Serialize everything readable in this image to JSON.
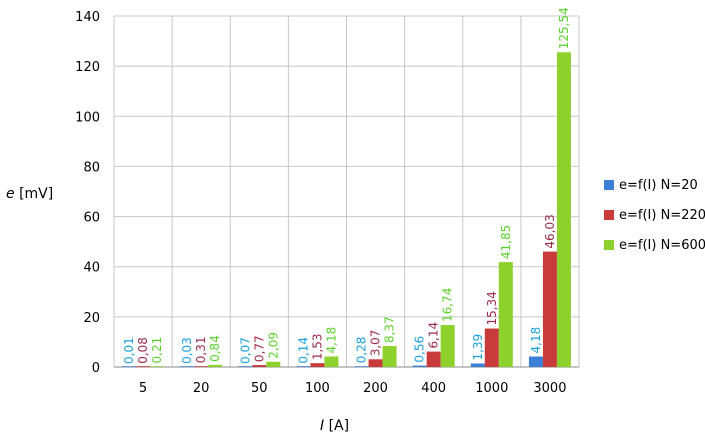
{
  "chart_data": {
    "type": "bar",
    "categories": [
      "5",
      "20",
      "50",
      "100",
      "200",
      "400",
      "1000",
      "3000"
    ],
    "series": [
      {
        "name": "e=f(I) N=20",
        "color": "#3c7fd6",
        "values": [
          0.01,
          0.03,
          0.07,
          0.14,
          0.28,
          0.56,
          1.39,
          4.18
        ],
        "labels": [
          "0,01",
          "0,03",
          "0,07",
          "0,14",
          "0,28",
          "0,56",
          "1,39",
          "4,18"
        ],
        "label_color": "#1aa0e0"
      },
      {
        "name": "e=f(I) N=220",
        "color": "#c93a3a",
        "values": [
          0.08,
          0.31,
          0.77,
          1.53,
          3.07,
          6.14,
          15.34,
          46.03
        ],
        "labels": [
          "0,08",
          "0,31",
          "0,77",
          "1,53",
          "3,07",
          "6,14",
          "15,34",
          "46,03"
        ],
        "label_color": "#9e2b4a"
      },
      {
        "name": "e=f(I) N=600",
        "color": "#8ed12c",
        "values": [
          0.21,
          0.84,
          2.09,
          4.18,
          8.37,
          16.74,
          41.85,
          125.54
        ],
        "labels": [
          "0,21",
          "0,84",
          "2,09",
          "4,18",
          "8,37",
          "16,74",
          "41,85",
          "125,54"
        ],
        "label_color": "#5bd12c"
      }
    ],
    "ylim": [
      0,
      140
    ],
    "yticks": [
      "0",
      "20",
      "40",
      "60",
      "80",
      "100",
      "120",
      "140"
    ],
    "ylabel_italic": "e",
    "ylabel_unit": " [mV]",
    "xlabel_italic": "I",
    "xlabel_unit": " [A]",
    "grid": true,
    "legend": "right"
  }
}
